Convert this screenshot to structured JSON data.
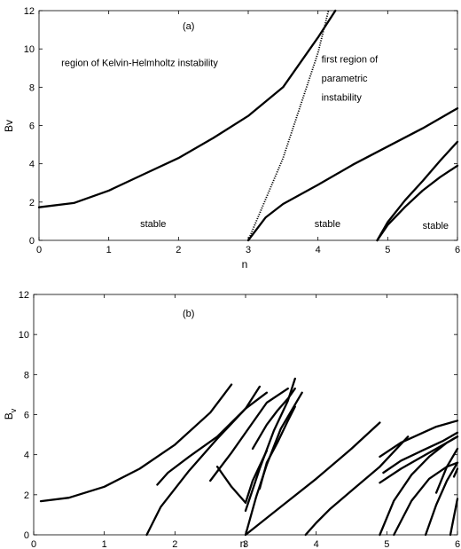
{
  "chart_data": [
    {
      "type": "line",
      "panel_label": "(a)",
      "xlabel": "n",
      "ylabel": "Bv",
      "xlim": [
        0,
        6
      ],
      "ylim": [
        0,
        12
      ],
      "xticks": [
        0,
        1,
        2,
        3,
        4,
        5,
        6
      ],
      "yticks": [
        0,
        2,
        4,
        6,
        8,
        10,
        12
      ],
      "grid": false,
      "annotations": [
        {
          "text": "region of Kelvin-Helmholtz instability",
          "x": 0.32,
          "y": 9.1
        },
        {
          "text": "first region of",
          "x": 4.05,
          "y": 9.3
        },
        {
          "text": "parametric",
          "x": 4.05,
          "y": 8.3
        },
        {
          "text": "instability",
          "x": 4.05,
          "y": 7.3
        },
        {
          "text": "stable",
          "x": 1.45,
          "y": 0.7
        },
        {
          "text": "stable",
          "x": 3.95,
          "y": 0.7
        },
        {
          "text": "stable",
          "x": 5.5,
          "y": 0.6
        }
      ],
      "series": [
        {
          "style": "solid",
          "x": [
            0,
            0.5,
            1,
            1.5,
            2,
            2.5,
            3,
            3.5,
            4,
            4.25
          ],
          "y": [
            1.73,
            1.95,
            2.6,
            3.45,
            4.3,
            5.35,
            6.5,
            8.0,
            10.6,
            12.0
          ]
        },
        {
          "style": "dotted",
          "x": [
            3.0,
            3.5,
            4.0,
            4.15
          ],
          "y": [
            0,
            4.3,
            9.8,
            12.0
          ]
        },
        {
          "style": "solid",
          "x": [
            3.0,
            3.25,
            3.5,
            4.0,
            4.5,
            5.0,
            5.5,
            6.0
          ],
          "y": [
            0,
            1.2,
            1.9,
            2.9,
            3.95,
            4.9,
            5.85,
            6.9
          ]
        },
        {
          "style": "solid",
          "x": [
            4.85,
            5.0,
            5.25,
            5.5,
            5.75,
            6.0
          ],
          "y": [
            0,
            0.95,
            2.1,
            3.1,
            4.15,
            5.15
          ]
        },
        {
          "style": "solid",
          "x": [
            4.85,
            5.0,
            5.25,
            5.5,
            5.75,
            6.0
          ],
          "y": [
            0,
            0.8,
            1.75,
            2.6,
            3.3,
            3.9
          ]
        }
      ]
    },
    {
      "type": "scatter",
      "panel_label": "(b)",
      "xlabel": "n",
      "ylabel": "B",
      "ylabel_subscript": "v",
      "xlim": [
        0,
        6
      ],
      "ylim": [
        0,
        12
      ],
      "xticks": [
        0,
        1,
        2,
        3,
        4,
        5,
        6
      ],
      "yticks": [
        0,
        2,
        4,
        6,
        8,
        10,
        12
      ],
      "grid": false,
      "series": [
        {
          "x": [
            0.1,
            0.5,
            1.0,
            1.5,
            2.0,
            2.5,
            2.8
          ],
          "y": [
            1.68,
            1.85,
            2.4,
            3.3,
            4.5,
            6.1,
            7.5
          ]
        },
        {
          "x": [
            1.75,
            1.9,
            2.2,
            2.6,
            3.0,
            3.2
          ],
          "y": [
            2.5,
            3.1,
            3.9,
            4.9,
            6.3,
            7.4
          ]
        },
        {
          "x": [
            1.6,
            1.8,
            2.2,
            2.6,
            3.0,
            3.3
          ],
          "y": [
            0.0,
            1.4,
            3.2,
            4.8,
            6.3,
            7.1
          ]
        },
        {
          "x": [
            2.5,
            2.8,
            3.1,
            3.3,
            3.6
          ],
          "y": [
            2.7,
            4.1,
            5.6,
            6.6,
            7.3
          ]
        },
        {
          "x": [
            2.6,
            2.8,
            3.0,
            3.1,
            3.3
          ],
          "y": [
            3.4,
            2.4,
            1.6,
            2.7,
            4.2
          ]
        },
        {
          "x": [
            3.0,
            3.15,
            3.3,
            3.5,
            3.8
          ],
          "y": [
            0.0,
            1.9,
            3.5,
            5.3,
            7.1
          ]
        },
        {
          "x": [
            3.0,
            3.2,
            3.4,
            3.6,
            3.7
          ],
          "y": [
            1.2,
            3.3,
            5.2,
            6.7,
            7.8
          ]
        },
        {
          "x": [
            3.1,
            3.3,
            3.45,
            3.6,
            3.7
          ],
          "y": [
            4.3,
            5.5,
            6.2,
            6.8,
            7.3
          ]
        },
        {
          "x": [
            3.2,
            3.3,
            3.45,
            3.6,
            3.7
          ],
          "y": [
            2.3,
            3.6,
            4.6,
            5.7,
            6.4
          ]
        },
        {
          "x": [
            3.0,
            3.5,
            4.0,
            4.5,
            4.9
          ],
          "y": [
            0.0,
            1.4,
            2.8,
            4.3,
            5.6
          ]
        },
        {
          "x": [
            3.85,
            4.0,
            4.2,
            4.5,
            4.9,
            5.3
          ],
          "y": [
            0.0,
            0.6,
            1.3,
            2.2,
            3.4,
            4.9
          ]
        },
        {
          "x": [
            4.9,
            5.1,
            5.35,
            5.6,
            5.85,
            6.0
          ],
          "y": [
            0.0,
            1.7,
            3.0,
            3.9,
            4.6,
            4.9
          ]
        },
        {
          "x": [
            4.9,
            5.2,
            5.5,
            5.8,
            6.0
          ],
          "y": [
            2.6,
            3.3,
            3.9,
            4.5,
            4.9
          ]
        },
        {
          "x": [
            4.95,
            5.2,
            5.5,
            5.8,
            6.0
          ],
          "y": [
            3.1,
            3.7,
            4.2,
            4.7,
            5.1
          ]
        },
        {
          "x": [
            4.9,
            5.2,
            5.45,
            5.7,
            6.0
          ],
          "y": [
            3.9,
            4.6,
            5.0,
            5.4,
            5.7
          ]
        },
        {
          "x": [
            5.1,
            5.35,
            5.6,
            5.85,
            6.0
          ],
          "y": [
            0.0,
            1.7,
            2.8,
            3.4,
            3.6
          ]
        },
        {
          "x": [
            5.55,
            5.7,
            5.85,
            6.0
          ],
          "y": [
            0.0,
            1.5,
            2.7,
            3.6
          ]
        },
        {
          "x": [
            5.7,
            5.85,
            6.0
          ],
          "y": [
            2.1,
            3.4,
            4.3
          ]
        },
        {
          "x": [
            5.9,
            6.0
          ],
          "y": [
            0.0,
            1.8
          ]
        },
        {
          "x": [
            5.95,
            6.0
          ],
          "y": [
            2.9,
            3.3
          ]
        }
      ]
    }
  ]
}
